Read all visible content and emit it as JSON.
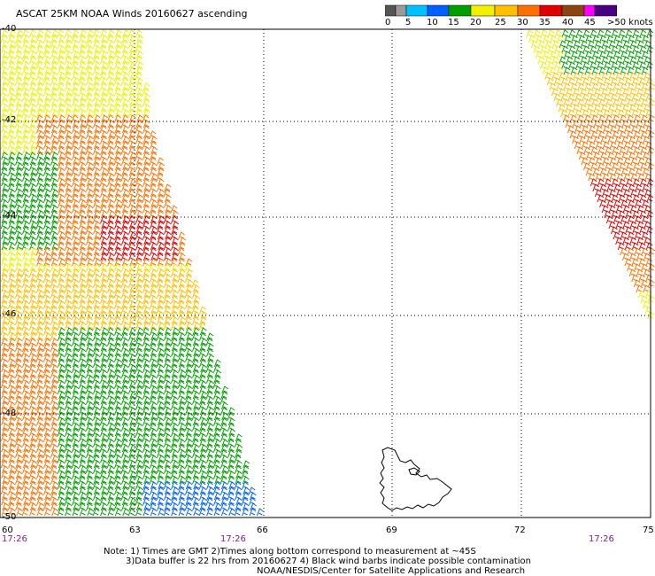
{
  "title": "ASCAT 25KM NOAA Winds 20160627 ascending",
  "colorbar": {
    "labels": [
      "0",
      "5",
      "10",
      "15",
      "20",
      "25",
      "30",
      "35",
      "40",
      "45",
      ">50 knots"
    ],
    "colors": [
      "#555555",
      "#9a9a9a",
      "#00c0ff",
      "#0060ff",
      "#00a000",
      "#f0f000",
      "#ffc000",
      "#ff7000",
      "#e00000",
      "#8b4513",
      "#ff00ff",
      "#4b0082"
    ]
  },
  "axes": {
    "lon_labels": [
      "60",
      "63",
      "66",
      "69",
      "72",
      "75"
    ],
    "lat_labels": [
      "-40",
      "-42",
      "-44",
      "-46",
      "-48",
      "-50"
    ]
  },
  "times": [
    "17:26",
    "17:26",
    "17:26"
  ],
  "notes": [
    "Note: 1) Times are GMT 2)Times along bottom correspond to measurement at ~45S",
    "3)Data buffer is 22 hrs from 20160627 4) Black wind barbs indicate possible contamination",
    "NOAA/NESDIS/Center for Satellite Applications and Research"
  ]
}
